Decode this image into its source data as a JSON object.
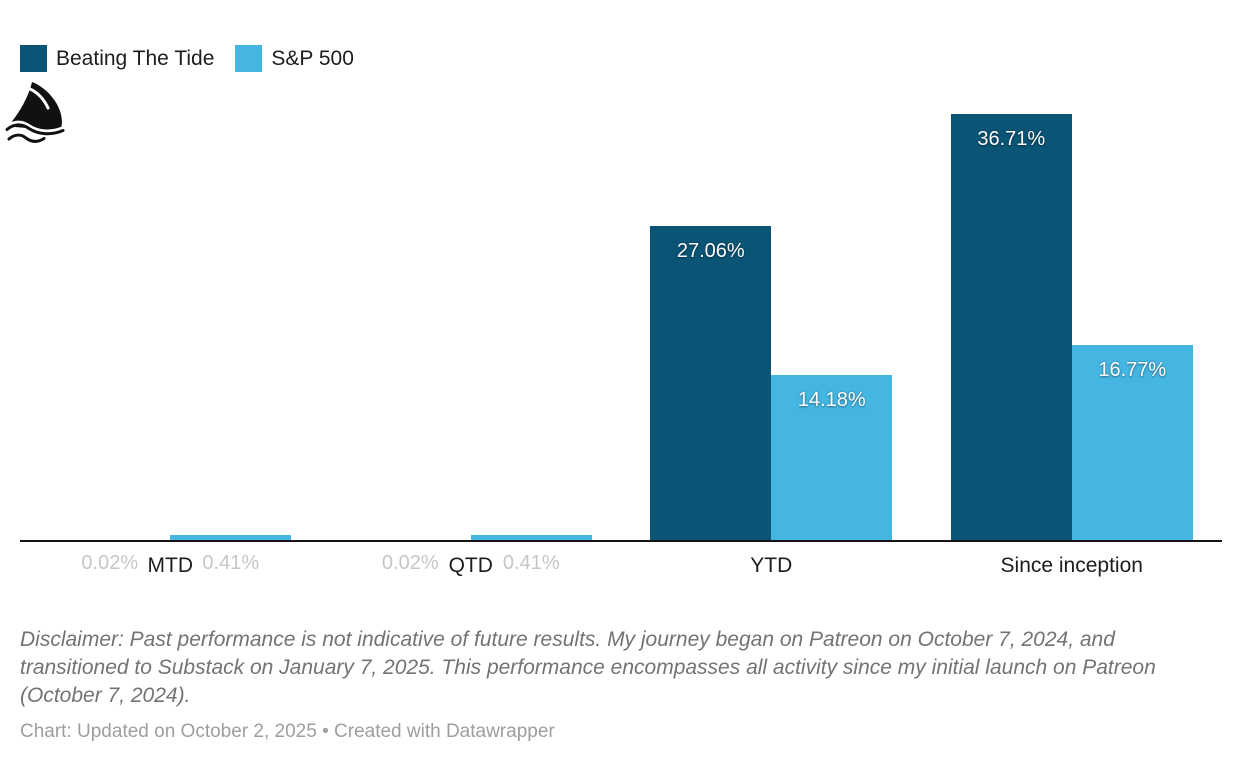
{
  "legend": {
    "items": [
      {
        "label": "Beating The Tide",
        "color": "#0a5475"
      },
      {
        "label": "S&P 500",
        "color": "#45b6e2"
      }
    ]
  },
  "logo": {
    "icon": "shark-fin-icon"
  },
  "chart_data": {
    "type": "bar",
    "categories": [
      "MTD",
      "QTD",
      "YTD",
      "Since inception"
    ],
    "series": [
      {
        "name": "Beating The Tide",
        "color": "#0a5475",
        "values": [
          0.02,
          0.02,
          27.06,
          36.71
        ]
      },
      {
        "name": "S&P 500",
        "color": "#45b6e2",
        "values": [
          0.41,
          0.41,
          14.18,
          16.77
        ]
      }
    ],
    "value_suffix": "%",
    "value_decimals": 2,
    "data_labels": [
      [
        "0.02%",
        "0.02%",
        "27.06%",
        "36.71%"
      ],
      [
        "0.41%",
        "0.41%",
        "14.18%",
        "16.77%"
      ]
    ],
    "title": "",
    "xlabel": "",
    "ylabel": "",
    "ylim": [
      0,
      39.6
    ],
    "grid": false,
    "legend_position": "top-left",
    "axis_color": "#141414"
  },
  "notes": {
    "disclaimer": "Disclaimer: Past performance is not indicative of future results. My journey began on Patreon on October 7, 2024, and transitioned to Substack on January 7, 2025. This performance encompasses all activity since my initial launch on Patreon (October 7, 2024).",
    "credit_prefix": "Chart: Updated on October 2, 2025 • ",
    "credit_link": "Created with Datawrapper"
  }
}
